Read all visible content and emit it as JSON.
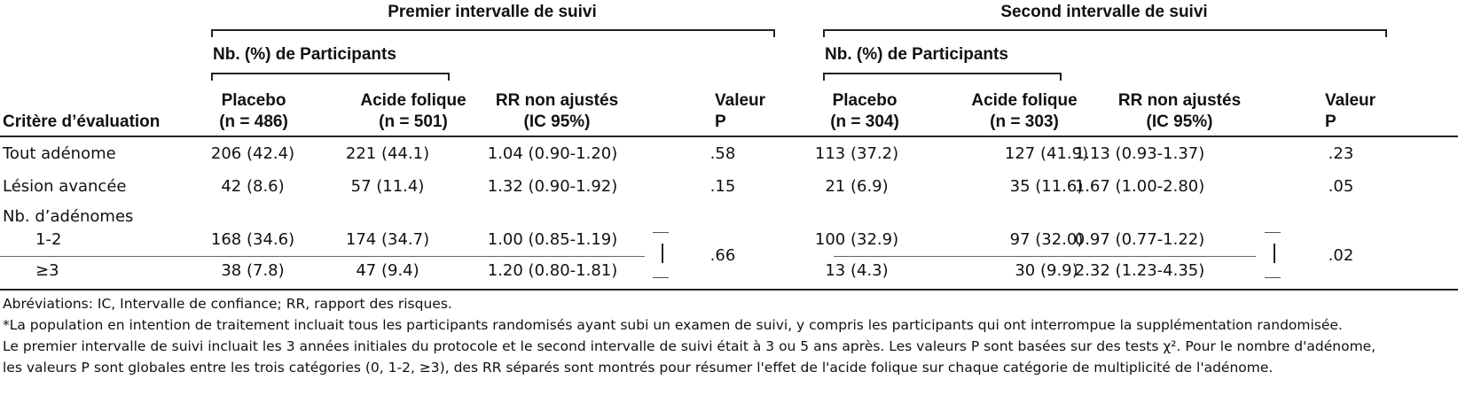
{
  "header": {
    "criterion": "Critère d’évaluation",
    "groups": [
      {
        "title": "Premier intervalle de suivi",
        "subheader": "Nb. (%) de Participants",
        "columns": [
          "Placebo\n(n = 486)",
          "Acide folique\n(n = 501)",
          "RR non ajustés\n(IC 95%)",
          "Valeur\nP"
        ]
      },
      {
        "title": "Second intervalle de suivi",
        "subheader": "Nb. (%) de Participants",
        "columns": [
          "Placebo\n(n = 304)",
          "Acide folique\n(n = 303)",
          "RR non ajustés\n(IC 95%)",
          "Valeur\nP"
        ]
      }
    ]
  },
  "table": {
    "rows": [
      {
        "label": "Tout adénome",
        "groups": [
          [
            "206 (42.4)",
            "221 (44.1)",
            "1.04 (0.90-1.20)",
            ".58"
          ],
          [
            "113 (37.2)",
            "127 (41.9)",
            "1.13 (0.93-1.37)",
            ".23"
          ]
        ]
      },
      {
        "label": "Lésion avancée",
        "groups": [
          [
            "42 (8.6)",
            "57 (11.4)",
            "1.32 (0.90-1.92)",
            ".15"
          ],
          [
            "21 (6.9)",
            "35 (11.6)",
            "1.67 (1.00-2.80)",
            ".05"
          ]
        ]
      },
      {
        "label": "Nb. d’adénomes"
      },
      {
        "label": "1-2",
        "groups": [
          [
            "168 (34.6)",
            "174 (34.7)",
            "1.00 (0.85-1.19)"
          ],
          [
            "100 (32.9)",
            "97 (32.0)",
            "0.97 (0.77-1.22)"
          ]
        ]
      },
      {
        "label": "≥3",
        "groups": [
          [
            "38 (7.8)",
            "47 (9.4)",
            "1.20 (0.80-1.81)"
          ],
          [
            "13 (4.3)",
            "30 (9.9)",
            "2.32 (1.23-4.35)"
          ]
        ]
      }
    ],
    "merged_p": [
      ".66",
      ".02"
    ]
  },
  "footnotes": [
    "Abréviations: IC, Intervalle de confiance; RR, rapport des risques.",
    "*La population en intention de traitement incluait tous les participants randomisés ayant subi un examen de suivi, y compris les participants qui ont interrompue la supplémentation randomisée.",
    "Le premier intervalle de suivi incluait les 3 années initiales du protocole et le second intervalle de suivi était à 3 ou 5 ans après. Les valeurs P sont basées sur des tests χ². Pour le nombre d'adénome,",
    "les valeurs P sont globales entre les trois catégories (0, 1-2, ≥3), des RR séparés sont montrés pour résumer l'effet de l'acide folique sur chaque catégorie de multiplicité de l'adénome."
  ]
}
